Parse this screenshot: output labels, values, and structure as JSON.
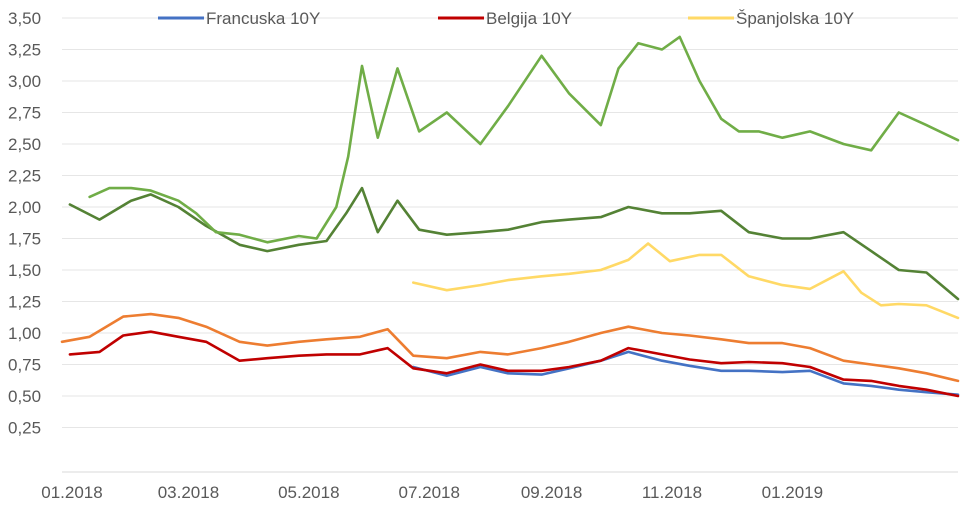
{
  "chart_data": {
    "type": "line",
    "title": "",
    "xlabel": "",
    "ylabel": "",
    "ylim": [
      0.25,
      3.5
    ],
    "y_ticks": [
      "3,50",
      "3,25",
      "3,00",
      "2,75",
      "2,50",
      "2,25",
      "2,00",
      "1,75",
      "1,50",
      "1,25",
      "1,00",
      "0,75",
      "0,50",
      "0,25"
    ],
    "y_tick_values": [
      3.5,
      3.25,
      3.0,
      2.75,
      2.5,
      2.25,
      2.0,
      1.75,
      1.5,
      1.25,
      1.0,
      0.75,
      0.5,
      0.25
    ],
    "x_ticks": [
      "01.2018",
      "03.2018",
      "05.2018",
      "07.2018",
      "09.2018",
      "11.2018",
      "01.2019"
    ],
    "x_tick_dates": [
      "2018-01-01",
      "2018-03-01",
      "2018-05-01",
      "2018-07-01",
      "2018-09-01",
      "2018-11-01",
      "2019-01-01"
    ],
    "x_range": [
      "2018-01-01",
      "2019-03-31"
    ],
    "grid": true,
    "legend_position": "top",
    "legend": [
      {
        "label": "Francuska 10Y",
        "color": "#4472C4"
      },
      {
        "label": "Belgija 10Y",
        "color": "#C00000"
      },
      {
        "label": "Španjolska 10Y",
        "color": "#FFD966"
      }
    ],
    "series": [
      {
        "name": "Francuska 10Y",
        "color": "#4472C4",
        "x": [
          "2018-06-28",
          "2018-07-15",
          "2018-08-01",
          "2018-08-15",
          "2018-09-01",
          "2018-09-15",
          "2018-10-01",
          "2018-10-15",
          "2018-11-01",
          "2018-11-15",
          "2018-12-01",
          "2018-12-15",
          "2019-01-01",
          "2019-01-15",
          "2019-02-01",
          "2019-02-15",
          "2019-03-01",
          "2019-03-15",
          "2019-03-31"
        ],
        "values": [
          0.73,
          0.66,
          0.73,
          0.68,
          0.67,
          0.72,
          0.78,
          0.85,
          0.78,
          0.74,
          0.7,
          0.7,
          0.69,
          0.7,
          0.6,
          0.58,
          0.55,
          0.53,
          0.51
        ]
      },
      {
        "name": "Belgija 10Y",
        "color": "#C00000",
        "x": [
          "2018-01-05",
          "2018-01-20",
          "2018-02-01",
          "2018-02-15",
          "2018-03-01",
          "2018-03-15",
          "2018-04-01",
          "2018-04-15",
          "2018-05-01",
          "2018-05-15",
          "2018-06-01",
          "2018-06-15",
          "2018-06-28",
          "2018-07-15",
          "2018-08-01",
          "2018-08-15",
          "2018-09-01",
          "2018-09-15",
          "2018-10-01",
          "2018-10-15",
          "2018-11-01",
          "2018-11-15",
          "2018-12-01",
          "2018-12-15",
          "2019-01-01",
          "2019-01-15",
          "2019-02-01",
          "2019-02-15",
          "2019-03-01",
          "2019-03-15",
          "2019-03-31"
        ],
        "values": [
          0.83,
          0.85,
          0.98,
          1.01,
          0.97,
          0.93,
          0.78,
          0.8,
          0.82,
          0.83,
          0.83,
          0.88,
          0.72,
          0.68,
          0.75,
          0.7,
          0.7,
          0.73,
          0.78,
          0.88,
          0.83,
          0.79,
          0.76,
          0.77,
          0.76,
          0.73,
          0.63,
          0.62,
          0.58,
          0.55,
          0.5
        ]
      },
      {
        "name": "Španjolska 10Y",
        "color": "#FFD966",
        "x": [
          "2018-06-28",
          "2018-07-15",
          "2018-08-01",
          "2018-08-15",
          "2018-09-01",
          "2018-09-15",
          "2018-10-01",
          "2018-10-15",
          "2018-10-25",
          "2018-11-05",
          "2018-11-20",
          "2018-12-01",
          "2018-12-15",
          "2019-01-01",
          "2019-01-15",
          "2019-02-01",
          "2019-02-10",
          "2019-02-20",
          "2019-03-01",
          "2019-03-15",
          "2019-03-31"
        ],
        "values": [
          1.4,
          1.34,
          1.38,
          1.42,
          1.45,
          1.47,
          1.5,
          1.58,
          1.71,
          1.57,
          1.62,
          1.62,
          1.45,
          1.38,
          1.35,
          1.49,
          1.32,
          1.22,
          1.23,
          1.22,
          1.12
        ]
      },
      {
        "name": "",
        "color": "#70AD47",
        "x": [
          "2018-01-15",
          "2018-01-25",
          "2018-02-05",
          "2018-02-15",
          "2018-03-01",
          "2018-03-10",
          "2018-03-20",
          "2018-04-01",
          "2018-04-15",
          "2018-05-01",
          "2018-05-10",
          "2018-05-20",
          "2018-05-26",
          "2018-06-02",
          "2018-06-10",
          "2018-06-20",
          "2018-07-01",
          "2018-07-15",
          "2018-08-01",
          "2018-08-15",
          "2018-09-01",
          "2018-09-15",
          "2018-10-01",
          "2018-10-10",
          "2018-10-20",
          "2018-11-01",
          "2018-11-10",
          "2018-11-20",
          "2018-12-01",
          "2018-12-10",
          "2018-12-20",
          "2019-01-01",
          "2019-01-15",
          "2019-02-01",
          "2019-02-15",
          "2019-03-01",
          "2019-03-15",
          "2019-03-31"
        ],
        "values": [
          2.08,
          2.15,
          2.15,
          2.13,
          2.05,
          1.95,
          1.8,
          1.78,
          1.72,
          1.77,
          1.75,
          2.0,
          2.4,
          3.12,
          2.55,
          3.1,
          2.6,
          2.75,
          2.5,
          2.8,
          3.2,
          2.9,
          2.65,
          3.1,
          3.3,
          3.25,
          3.35,
          3.0,
          2.7,
          2.6,
          2.6,
          2.55,
          2.6,
          2.5,
          2.45,
          2.75,
          2.65,
          2.53
        ]
      },
      {
        "name": "",
        "color": "#548235",
        "x": [
          "2018-01-05",
          "2018-01-20",
          "2018-02-05",
          "2018-02-15",
          "2018-03-01",
          "2018-03-15",
          "2018-04-01",
          "2018-04-15",
          "2018-05-01",
          "2018-05-15",
          "2018-05-25",
          "2018-06-02",
          "2018-06-10",
          "2018-06-20",
          "2018-07-01",
          "2018-07-15",
          "2018-08-01",
          "2018-08-15",
          "2018-09-01",
          "2018-09-15",
          "2018-10-01",
          "2018-10-15",
          "2018-11-01",
          "2018-11-15",
          "2018-12-01",
          "2018-12-15",
          "2019-01-01",
          "2019-01-15",
          "2019-02-01",
          "2019-02-15",
          "2019-03-01",
          "2019-03-15",
          "2019-03-31"
        ],
        "values": [
          2.02,
          1.9,
          2.05,
          2.1,
          2.0,
          1.85,
          1.7,
          1.65,
          1.7,
          1.73,
          1.95,
          2.15,
          1.8,
          2.05,
          1.82,
          1.78,
          1.8,
          1.82,
          1.88,
          1.9,
          1.92,
          2.0,
          1.95,
          1.95,
          1.97,
          1.8,
          1.75,
          1.75,
          1.8,
          1.65,
          1.5,
          1.48,
          1.27
        ]
      },
      {
        "name": "",
        "color": "#ED7D31",
        "x": [
          "2018-01-01",
          "2018-01-15",
          "2018-02-01",
          "2018-02-15",
          "2018-03-01",
          "2018-03-15",
          "2018-04-01",
          "2018-04-15",
          "2018-05-01",
          "2018-05-15",
          "2018-06-01",
          "2018-06-15",
          "2018-06-28",
          "2018-07-15",
          "2018-08-01",
          "2018-08-15",
          "2018-09-01",
          "2018-09-15",
          "2018-10-01",
          "2018-10-15",
          "2018-11-01",
          "2018-11-15",
          "2018-12-01",
          "2018-12-15",
          "2019-01-01",
          "2019-01-15",
          "2019-02-01",
          "2019-02-15",
          "2019-03-01",
          "2019-03-15",
          "2019-03-31"
        ],
        "values": [
          0.93,
          0.97,
          1.13,
          1.15,
          1.12,
          1.05,
          0.93,
          0.9,
          0.93,
          0.95,
          0.97,
          1.03,
          0.82,
          0.8,
          0.85,
          0.83,
          0.88,
          0.93,
          1.0,
          1.05,
          1.0,
          0.98,
          0.95,
          0.92,
          0.92,
          0.88,
          0.78,
          0.75,
          0.72,
          0.68,
          0.62
        ]
      }
    ]
  }
}
